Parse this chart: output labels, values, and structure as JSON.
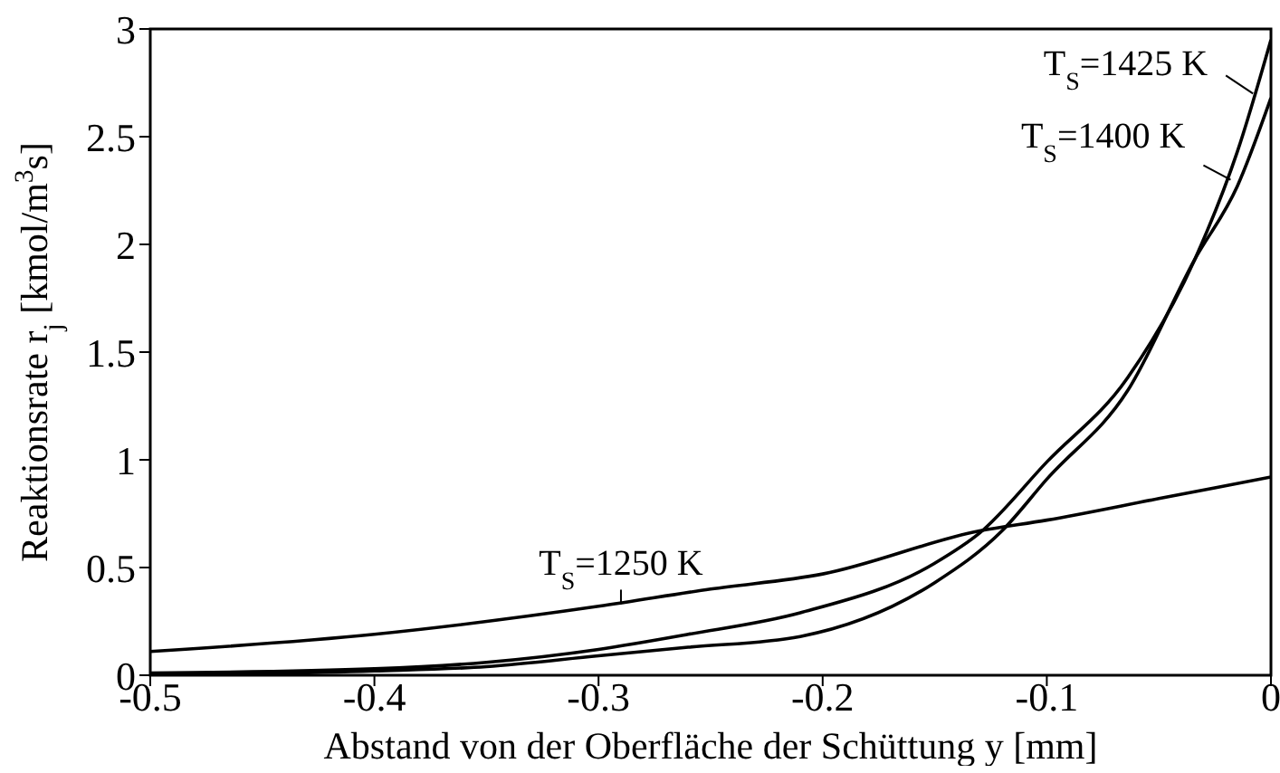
{
  "chart_data": {
    "type": "line",
    "xlabel": "Abstand von der Oberfläche der Schüttung y [mm]",
    "ylabel": "Reaktionsrate r$_{j}$ [kmol/m$^{3}$s]",
    "xlim": [
      -0.5,
      0
    ],
    "ylim": [
      0,
      3
    ],
    "xticks": [
      -0.5,
      -0.4,
      -0.3,
      -0.2,
      -0.1,
      0
    ],
    "yticks": [
      0,
      0.5,
      1,
      1.5,
      2,
      2.5,
      3
    ],
    "marker": "none",
    "line_style": "solid",
    "series": [
      {
        "color": "#000000",
        "x": [
          -0.5,
          -0.4,
          -0.3,
          -0.25,
          -0.2,
          -0.13,
          -0.1,
          -0.05,
          0
        ],
        "values": [
          0.11,
          0.19,
          0.32,
          0.4,
          0.47,
          0.67,
          0.72,
          0.82,
          0.92
        ]
      },
      {
        "color": "#000000",
        "x": [
          -0.5,
          -0.4,
          -0.35,
          -0.3,
          -0.26,
          -0.21,
          -0.15,
          -0.13,
          -0.1,
          -0.064,
          -0.034,
          -0.015,
          0
        ],
        "values": [
          0.01,
          0.03,
          0.06,
          0.12,
          0.19,
          0.29,
          0.52,
          0.66,
          0.99,
          1.38,
          1.93,
          2.43,
          2.95
        ]
      },
      {
        "color": "#000000",
        "x": [
          -0.5,
          -0.4,
          -0.35,
          -0.3,
          -0.26,
          -0.21,
          -0.15,
          -0.12,
          -0.1,
          -0.064,
          -0.034,
          -0.015,
          0
        ],
        "values": [
          0,
          0.02,
          0.04,
          0.09,
          0.13,
          0.18,
          0.43,
          0.67,
          0.91,
          1.32,
          1.93,
          2.27,
          2.68
        ]
      }
    ],
    "annotations": [
      {
        "text": "T$_{S}$=1425 K",
        "x": -0.008,
        "y": 2.7
      },
      {
        "text": "T$_{S}$=1400 K",
        "x": -0.018,
        "y": 2.3
      },
      {
        "text": "T$_{S}$=1250 K",
        "x": -0.29,
        "y": 0.33
      }
    ]
  }
}
